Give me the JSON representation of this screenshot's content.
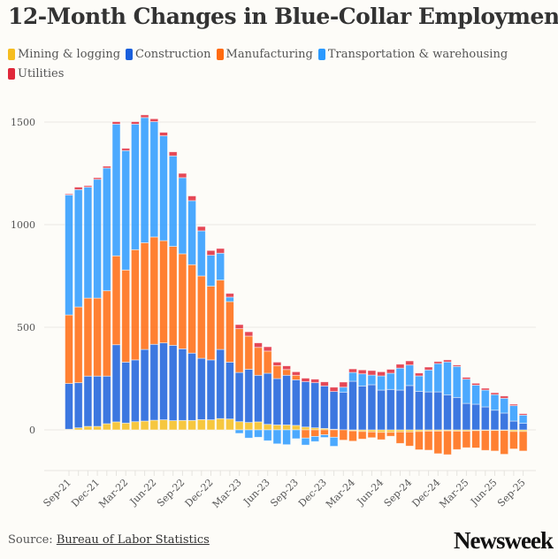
{
  "header": {
    "title": "12-Month Changes in Blue-Collar Employment"
  },
  "footer": {
    "source_label": "Source:",
    "source_link": "Bureau of Labor Statistics",
    "logo": "Newsweek"
  },
  "chart_data": {
    "type": "bar",
    "stacked": true,
    "title": "12-Month Changes in Blue-Collar Employment",
    "xlabel": "",
    "ylabel": "",
    "ylim": [
      -150,
      1550
    ],
    "yticks": [
      0,
      500,
      1000,
      1500
    ],
    "grid": true,
    "legend_placement": "top",
    "categories": [
      "Sep-21",
      "Oct-21",
      "Nov-21",
      "Dec-21",
      "Jan-22",
      "Feb-22",
      "Mar-22",
      "Apr-22",
      "May-22",
      "Jun-22",
      "Jul-22",
      "Aug-22",
      "Sep-22",
      "Oct-22",
      "Nov-22",
      "Dec-22",
      "Jan-23",
      "Feb-23",
      "Mar-23",
      "Apr-23",
      "May-23",
      "Jun-23",
      "Jul-23",
      "Aug-23",
      "Sep-23",
      "Oct-23",
      "Nov-23",
      "Dec-23",
      "Jan-24",
      "Feb-24",
      "Mar-24",
      "Apr-24",
      "May-24",
      "Jun-24",
      "Jul-24",
      "Aug-24",
      "Sep-24",
      "Oct-24",
      "Nov-24",
      "Dec-24",
      "Jan-25",
      "Feb-25",
      "Mar-25",
      "Apr-25",
      "May-25",
      "Jun-25",
      "Jul-25",
      "Aug-25",
      "Sep-25"
    ],
    "tick_labels": [
      "Sep-21",
      "Dec-21",
      "Mar-22",
      "Jun-22",
      "Sep-22",
      "Dec-22",
      "Mar-23",
      "Jun-23",
      "Sep-23",
      "Dec-23",
      "Mar-24",
      "Jun-24",
      "Sep-24",
      "Dec-24",
      "Mar-25",
      "Jun-25",
      "Sep-25"
    ],
    "series": [
      {
        "name": "Mining & logging",
        "color": "#f5bd1f",
        "values": [
          3,
          10,
          17,
          17,
          30,
          39,
          33,
          40,
          43,
          47,
          49,
          45,
          46,
          46,
          50,
          49,
          55,
          53,
          40,
          36,
          39,
          27,
          24,
          24,
          22,
          14,
          10,
          7,
          3,
          0,
          -5,
          -8,
          -10,
          -12,
          -12,
          -10,
          -10,
          -8,
          -6,
          -6,
          -5,
          -6,
          -6,
          -4,
          -3,
          -3,
          -3,
          -8,
          -8
        ]
      },
      {
        "name": "Construction",
        "color": "#1a5fdc",
        "values": [
          223,
          220,
          245,
          245,
          232,
          376,
          297,
          301,
          349,
          370,
          375,
          367,
          349,
          328,
          299,
          292,
          337,
          277,
          240,
          259,
          227,
          249,
          226,
          242,
          222,
          221,
          220,
          207,
          184,
          184,
          237,
          214,
          220,
          194,
          197,
          194,
          216,
          188,
          185,
          185,
          171,
          158,
          129,
          125,
          112,
          96,
          82,
          43,
          32
        ]
      },
      {
        "name": "Manufacturing",
        "color": "#ff6a0f",
        "values": [
          334,
          369,
          380,
          380,
          416,
          433,
          449,
          537,
          520,
          523,
          498,
          482,
          463,
          431,
          401,
          359,
          338,
          295,
          213,
          162,
          136,
          108,
          63,
          28,
          22,
          -40,
          -32,
          -24,
          -36,
          -50,
          -50,
          -37,
          -28,
          -36,
          -19,
          -56,
          -69,
          -89,
          -93,
          -110,
          -116,
          -90,
          -81,
          -84,
          -97,
          -100,
          -116,
          -85,
          -95
        ]
      },
      {
        "name": "Transportation & warehousing",
        "color": "#2b9aff",
        "values": [
          585,
          572,
          541,
          579,
          598,
          642,
          582,
          612,
          610,
          562,
          511,
          441,
          371,
          312,
          220,
          151,
          131,
          22,
          -17,
          -40,
          -36,
          -53,
          -68,
          -72,
          -43,
          -34,
          -25,
          -13,
          -44,
          24,
          43,
          59,
          47,
          69,
          79,
          107,
          100,
          75,
          107,
          138,
          160,
          151,
          118,
          93,
          82,
          76,
          72,
          75,
          40
        ]
      },
      {
        "name": "Utilities",
        "color": "#e0283a",
        "values": [
          5,
          12,
          7,
          8,
          9,
          12,
          11,
          12,
          13,
          14,
          17,
          20,
          21,
          23,
          21,
          23,
          23,
          18,
          20,
          21,
          22,
          21,
          17,
          18,
          17,
          17,
          17,
          20,
          21,
          25,
          17,
          19,
          22,
          20,
          19,
          19,
          20,
          14,
          14,
          10,
          10,
          7,
          9,
          9,
          9,
          9,
          11,
          7,
          7
        ]
      }
    ]
  }
}
